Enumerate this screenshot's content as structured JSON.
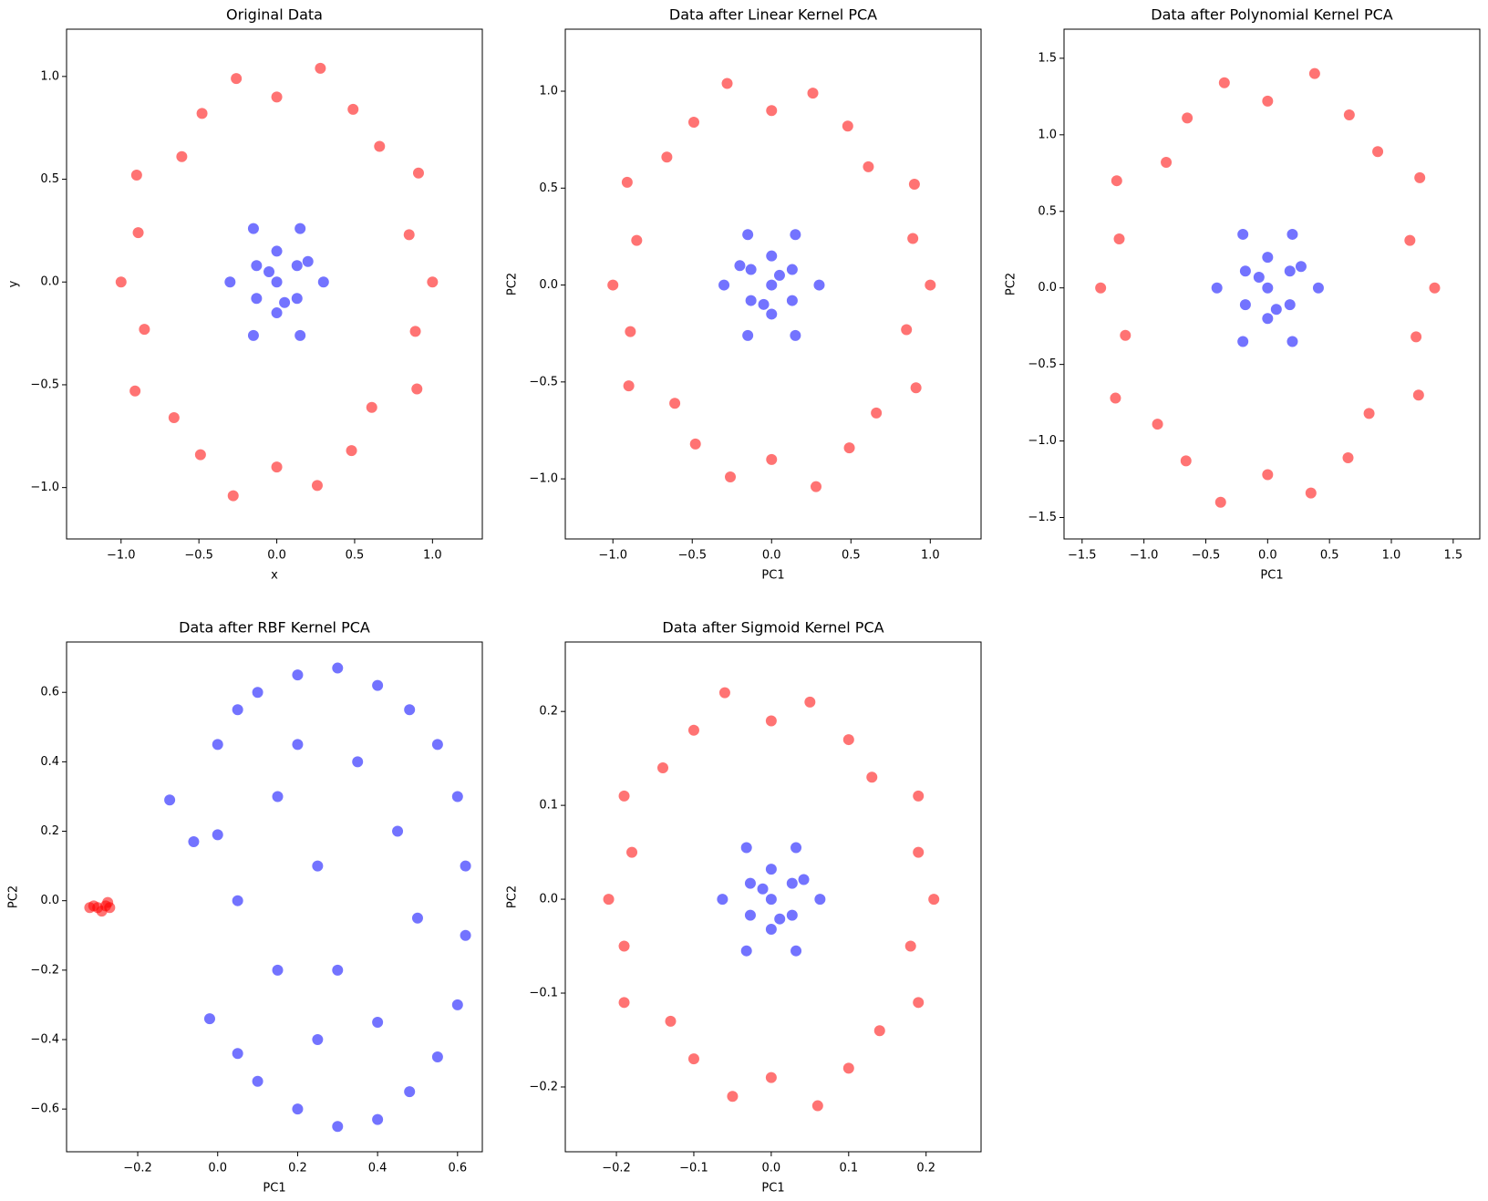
{
  "chart_data": [
    {
      "type": "scatter",
      "title": "Original Data",
      "x_label": "x",
      "y_label": "y",
      "xlim": [
        -1.35,
        1.32
      ],
      "ylim": [
        -1.25,
        1.23
      ],
      "xticks": [
        {
          "value": -1.0,
          "label": "−1.0"
        },
        {
          "value": -0.5,
          "label": "−0.5"
        },
        {
          "value": 0,
          "label": "0.0"
        },
        0.5,
        {
          "value": 1.0,
          "label": "1.0"
        }
      ],
      "yticks": [
        {
          "value": -1.0,
          "label": "−1.0"
        },
        {
          "value": -0.5,
          "label": "−0.5"
        },
        {
          "value": 0,
          "label": "0.0"
        },
        0.5,
        {
          "value": 1.0,
          "label": "1.0"
        }
      ],
      "series": [
        {
          "color": "#ff0000",
          "x": [
            1.0,
            0.85,
            0.91,
            0.66,
            0.49,
            0.28,
            0,
            -0.26,
            -0.48,
            -0.61,
            -0.9,
            -0.89,
            -1.0,
            -0.85,
            -0.91,
            -0.66,
            -0.49,
            -0.28,
            0,
            0.26,
            0.48,
            0.61,
            0.9,
            0.89
          ],
          "values": [
            0,
            0.23,
            0.53,
            0.66,
            0.84,
            1.04,
            0.9,
            0.99,
            0.82,
            0.61,
            0.52,
            0.24,
            0,
            -0.23,
            -0.53,
            -0.66,
            -0.84,
            -1.04,
            -0.9,
            -0.99,
            -0.82,
            -0.61,
            -0.52,
            -0.24
          ]
        },
        {
          "color": "#0000ff",
          "x": [
            0.3,
            0.13,
            0.15,
            0,
            -0.15,
            -0.13,
            -0.3,
            -0.13,
            -0.15,
            0,
            0.15,
            0.13,
            0,
            0.05,
            -0.05,
            0.2
          ],
          "values": [
            0,
            0.08,
            0.26,
            0.15,
            0.26,
            0.08,
            0,
            -0.08,
            -0.26,
            -0.15,
            -0.26,
            -0.08,
            0,
            -0.1,
            0.05,
            0.1
          ]
        }
      ]
    },
    {
      "type": "scatter",
      "title": "Data after Linear Kernel PCA",
      "x_label": "PC1",
      "y_label": "PC2",
      "xlim": [
        -1.3,
        1.32
      ],
      "ylim": [
        -1.31,
        1.32
      ],
      "xticks": [
        {
          "value": -1.0,
          "label": "−1.0"
        },
        {
          "value": -0.5,
          "label": "−0.5"
        },
        {
          "value": 0,
          "label": "0.0"
        },
        0.5,
        {
          "value": 1.0,
          "label": "1.0"
        }
      ],
      "yticks": [
        {
          "value": -1.0,
          "label": "−1.0"
        },
        {
          "value": -0.5,
          "label": "−0.5"
        },
        {
          "value": 0,
          "label": "0.0"
        },
        0.5,
        {
          "value": 1.0,
          "label": "1.0"
        }
      ],
      "series": [
        {
          "color": "#ff0000",
          "x": [
            -1.0,
            -0.85,
            -0.91,
            -0.66,
            -0.49,
            -0.28,
            0,
            0.26,
            0.48,
            0.61,
            0.9,
            0.89,
            1.0,
            0.85,
            0.91,
            0.66,
            0.49,
            0.28,
            0,
            -0.26,
            -0.48,
            -0.61,
            -0.9,
            -0.89
          ],
          "values": [
            0,
            0.23,
            0.53,
            0.66,
            0.84,
            1.04,
            0.9,
            0.99,
            0.82,
            0.61,
            0.52,
            0.24,
            0,
            -0.23,
            -0.53,
            -0.66,
            -0.84,
            -1.04,
            -0.9,
            -0.99,
            -0.82,
            -0.61,
            -0.52,
            -0.24
          ]
        },
        {
          "color": "#0000ff",
          "x": [
            -0.3,
            -0.13,
            -0.15,
            0,
            0.15,
            0.13,
            0.3,
            0.13,
            0.15,
            0,
            -0.15,
            -0.13,
            0,
            -0.05,
            0.05,
            -0.2
          ],
          "values": [
            0,
            0.08,
            0.26,
            0.15,
            0.26,
            0.08,
            0,
            -0.08,
            -0.26,
            -0.15,
            -0.26,
            -0.08,
            0,
            -0.1,
            0.05,
            0.1
          ]
        }
      ]
    },
    {
      "type": "scatter",
      "title": "Data after Polynomial Kernel PCA",
      "x_label": "PC1",
      "y_label": "PC2",
      "xlim": [
        -1.646,
        1.715
      ],
      "ylim": [
        -1.64,
        1.69
      ],
      "xticks": [
        {
          "value": -1.5,
          "label": "−1.5"
        },
        {
          "value": -1.0,
          "label": "−1.0"
        },
        {
          "value": -0.5,
          "label": "−0.5"
        },
        {
          "value": 0,
          "label": "0.0"
        },
        0.5,
        {
          "value": 1.0,
          "label": "1.0"
        },
        1.5
      ],
      "yticks": [
        {
          "value": -1.5,
          "label": "−1.5"
        },
        {
          "value": -1.0,
          "label": "−1.0"
        },
        {
          "value": -0.5,
          "label": "−0.5"
        },
        {
          "value": 0,
          "label": "0.0"
        },
        0.5,
        {
          "value": 1.0,
          "label": "1.0"
        },
        1.5
      ],
      "series": [
        {
          "color": "#ff0000",
          "x": [
            1.35,
            1.15,
            1.23,
            0.89,
            0.66,
            0.38,
            0,
            -0.35,
            -0.65,
            -0.82,
            -1.22,
            -1.2,
            -1.35,
            -1.15,
            -1.23,
            -0.89,
            -0.66,
            -0.38,
            0,
            0.35,
            0.65,
            0.82,
            1.22,
            1.2
          ],
          "values": [
            0,
            0.31,
            0.72,
            0.89,
            1.13,
            1.4,
            1.22,
            1.34,
            1.11,
            0.82,
            0.7,
            0.32,
            0,
            -0.31,
            -0.72,
            -0.89,
            -1.13,
            -1.4,
            -1.22,
            -1.34,
            -1.11,
            -0.82,
            -0.7,
            -0.32
          ]
        },
        {
          "color": "#0000ff",
          "x": [
            0.41,
            0.18,
            0.2,
            0,
            -0.2,
            -0.18,
            -0.41,
            -0.18,
            -0.2,
            0,
            0.2,
            0.18,
            0,
            0.07,
            -0.07,
            0.27
          ],
          "values": [
            0,
            0.11,
            0.35,
            0.2,
            0.35,
            0.11,
            0,
            -0.11,
            -0.35,
            -0.2,
            -0.35,
            -0.11,
            0,
            -0.14,
            0.07,
            0.14
          ]
        }
      ]
    },
    {
      "type": "scatter",
      "title": "Data after RBF Kernel PCA",
      "x_label": "PC1",
      "y_label": "PC2",
      "xlim": [
        -0.378,
        0.662
      ],
      "ylim": [
        -0.723,
        0.745
      ],
      "xticks": [
        {
          "value": -0.2,
          "label": "−0.2"
        },
        {
          "value": 0,
          "label": "0.0"
        },
        0.2,
        0.4,
        0.6
      ],
      "yticks": [
        {
          "value": -0.6,
          "label": "−0.6"
        },
        {
          "value": -0.4,
          "label": "−0.4"
        },
        {
          "value": -0.2,
          "label": "−0.2"
        },
        {
          "value": 0,
          "label": "0.0"
        },
        0.2,
        0.4,
        0.6
      ],
      "series": [
        {
          "color": "#ff0000",
          "x": [
            -0.32,
            -0.3,
            -0.28,
            -0.27,
            -0.29,
            -0.31,
            -0.275
          ],
          "values": [
            -0.02,
            -0.02,
            -0.015,
            -0.02,
            -0.03,
            -0.015,
            -0.005
          ]
        },
        {
          "color": "#0000ff",
          "x": [
            -0.12,
            -0.06,
            0.0,
            0.05,
            0.1,
            0.2,
            0.3,
            0.4,
            0.48,
            0.55,
            0.6,
            0.62,
            0.62,
            0.6,
            0.55,
            0.48,
            0.4,
            0.3,
            0.2,
            0.1,
            0.05,
            -0.02,
            0.0,
            0.05,
            0.15,
            0.25,
            0.3,
            0.35,
            0.45,
            0.4,
            0.15,
            0.25,
            0.5,
            0.2
          ],
          "values": [
            0.29,
            0.17,
            0.45,
            0.55,
            0.6,
            0.65,
            0.67,
            0.62,
            0.55,
            0.45,
            0.3,
            0.1,
            -0.1,
            -0.3,
            -0.45,
            -0.55,
            -0.63,
            -0.65,
            -0.6,
            -0.52,
            -0.44,
            -0.34,
            0.19,
            0.0,
            0.3,
            0.1,
            -0.2,
            0.4,
            0.2,
            -0.35,
            -0.2,
            -0.4,
            -0.05,
            0.45
          ]
        }
      ]
    },
    {
      "type": "scatter",
      "title": "Data after Sigmoid Kernel PCA",
      "x_label": "PC1",
      "y_label": "PC2",
      "xlim": [
        -0.266,
        0.271
      ],
      "ylim": [
        -0.269,
        0.274
      ],
      "xticks": [
        {
          "value": -0.2,
          "label": "−0.2"
        },
        {
          "value": -0.1,
          "label": "−0.1"
        },
        {
          "value": 0,
          "label": "0.0"
        },
        0.1,
        0.2
      ],
      "yticks": [
        {
          "value": -0.2,
          "label": "−0.2"
        },
        {
          "value": -0.1,
          "label": "−0.1"
        },
        {
          "value": 0,
          "label": "0.0"
        },
        0.1,
        0.2
      ],
      "series": [
        {
          "color": "#ff0000",
          "x": [
            -0.21,
            -0.18,
            -0.19,
            -0.14,
            -0.1,
            -0.06,
            0,
            0.05,
            0.1,
            0.13,
            0.19,
            0.19,
            0.21,
            0.18,
            0.19,
            0.14,
            0.1,
            0.06,
            0,
            -0.05,
            -0.1,
            -0.13,
            -0.19,
            -0.19
          ],
          "values": [
            0,
            0.05,
            0.11,
            0.14,
            0.18,
            0.22,
            0.19,
            0.21,
            0.17,
            0.13,
            0.11,
            0.05,
            0,
            -0.05,
            -0.11,
            -0.14,
            -0.18,
            -0.22,
            -0.19,
            -0.21,
            -0.17,
            -0.13,
            -0.11,
            -0.05
          ]
        },
        {
          "color": "#0000ff",
          "x": [
            0.063,
            0.027,
            0.032,
            0,
            -0.032,
            -0.027,
            -0.063,
            -0.027,
            -0.032,
            0,
            0.032,
            0.027,
            0,
            0.011,
            -0.011,
            0.042
          ],
          "values": [
            0,
            0.017,
            0.055,
            0.032,
            0.055,
            0.017,
            0,
            -0.017,
            -0.055,
            -0.032,
            -0.055,
            -0.017,
            0,
            -0.021,
            0.011,
            0.021
          ]
        }
      ]
    }
  ]
}
